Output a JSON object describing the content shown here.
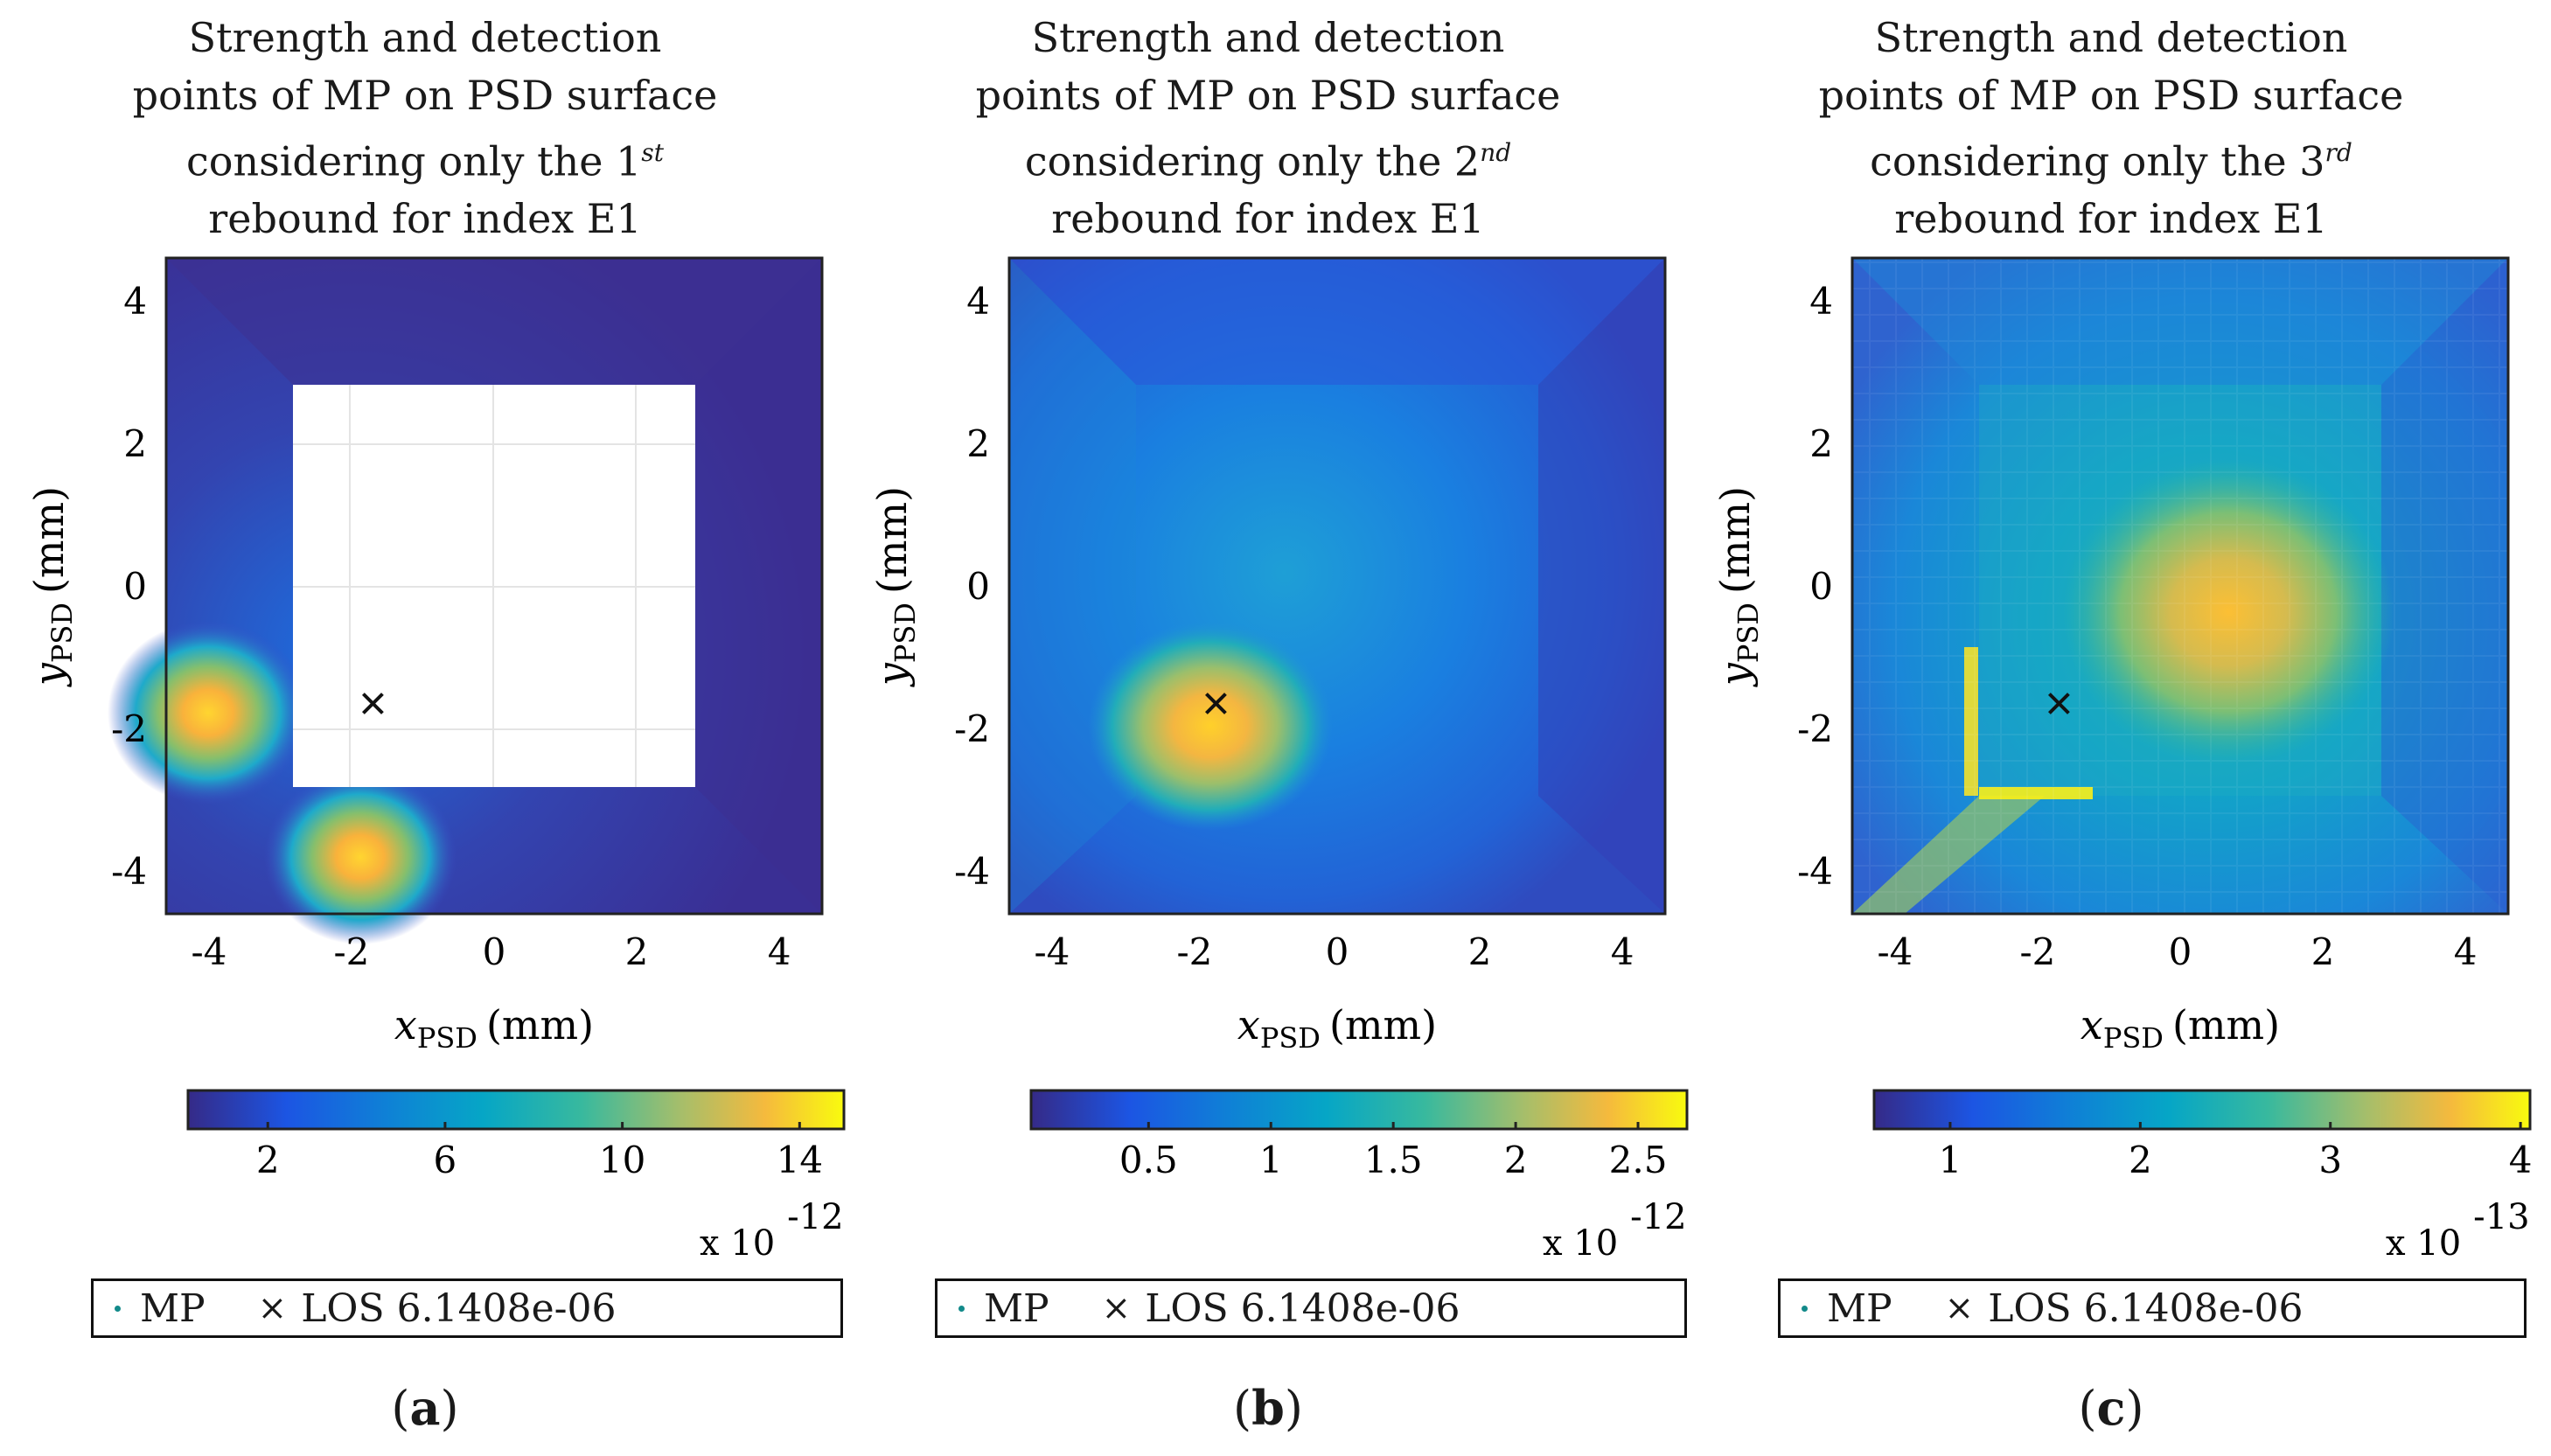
{
  "chart_data": [
    {
      "type": "heatmap",
      "panel_label": "a",
      "title_line1": "Strength and detection",
      "title_line2": "points of MP on PSD surface",
      "title_line3_prefix": "considering only the 1",
      "title_line3_sup": "st",
      "title_line4": "rebound for index E1",
      "xlabel_var": "x",
      "xlabel_sub": "PSD",
      "xlabel_unit": "(mm)",
      "ylabel_var": "y",
      "ylabel_sub": "PSD",
      "ylabel_unit": "(mm)",
      "xlim": [
        -4.6,
        4.6
      ],
      "ylim": [
        -4.6,
        4.6
      ],
      "xticks": [
        "-4",
        "-2",
        "0",
        "2",
        "4"
      ],
      "yticks": [
        "4",
        "2",
        "0",
        "-2",
        "-4"
      ],
      "central_blank": [
        -2.85,
        2.85,
        -2.8,
        2.8
      ],
      "hotspots": [
        {
          "x": -3.8,
          "y": -1.8,
          "value": 14.5
        },
        {
          "x": -1.8,
          "y": -3.7,
          "value": 14.0
        }
      ],
      "los_marker": {
        "x": -1.7,
        "y": -1.65
      },
      "colorbar": {
        "range": [
          0.2,
          15
        ],
        "ticks": [
          "2",
          "6",
          "10",
          "14"
        ],
        "tick_values": [
          2,
          6,
          10,
          14
        ],
        "exponent_label": "x 10",
        "exponent": "-12"
      },
      "legend": {
        "mp_label": "MP",
        "los_label": "LOS 6.1408e-06"
      }
    },
    {
      "type": "heatmap",
      "panel_label": "b",
      "title_line1": "Strength and detection",
      "title_line2": "points of MP on PSD surface",
      "title_line3_prefix": "considering only the 2",
      "title_line3_sup": "nd",
      "title_line4": "rebound for index E1",
      "xlabel_var": "x",
      "xlabel_sub": "PSD",
      "xlabel_unit": "(mm)",
      "ylabel_var": "y",
      "ylabel_sub": "PSD",
      "ylabel_unit": "(mm)",
      "xlim": [
        -4.6,
        4.6
      ],
      "ylim": [
        -4.6,
        4.6
      ],
      "xticks": [
        "-4",
        "-2",
        "0",
        "2",
        "4"
      ],
      "yticks": [
        "4",
        "2",
        "0",
        "-2",
        "-4"
      ],
      "hotspots": [
        {
          "x": -2.3,
          "y": -1.9,
          "value": 2.6
        }
      ],
      "los_marker": {
        "x": -1.7,
        "y": -1.65
      },
      "colorbar": {
        "range": [
          0.02,
          2.7
        ],
        "ticks": [
          "0.5",
          "1",
          "1.5",
          "2",
          "2.5"
        ],
        "tick_values": [
          0.5,
          1,
          1.5,
          2,
          2.5
        ],
        "exponent_label": "x 10",
        "exponent": "-12"
      },
      "legend": {
        "mp_label": "MP",
        "los_label": "LOS 6.1408e-06"
      }
    },
    {
      "type": "heatmap",
      "panel_label": "c",
      "title_line1": "Strength and detection",
      "title_line2": "points of MP on PSD surface",
      "title_line3_prefix": "considering only the 3",
      "title_line3_sup": "rd",
      "title_line4": "rebound for index E1",
      "xlabel_var": "x",
      "xlabel_sub": "PSD",
      "xlabel_unit": "(mm)",
      "ylabel_var": "y",
      "ylabel_sub": "PSD",
      "ylabel_unit": "(mm)",
      "xlim": [
        -4.6,
        4.6
      ],
      "ylim": [
        -4.6,
        4.6
      ],
      "xticks": [
        "-4",
        "-2",
        "0",
        "2",
        "4"
      ],
      "yticks": [
        "4",
        "2",
        "0",
        "-2",
        "-4"
      ],
      "hotspots": [
        {
          "x": -0.5,
          "y": -0.4,
          "value": 3.4
        },
        {
          "x": -1.6,
          "y": -2.9,
          "value": 4.0
        }
      ],
      "los_marker": {
        "x": -1.7,
        "y": -1.65
      },
      "colorbar": {
        "range": [
          0.6,
          4.05
        ],
        "ticks": [
          "1",
          "2",
          "3",
          "4"
        ],
        "tick_values": [
          1,
          2,
          3,
          4
        ],
        "exponent_label": "x 10",
        "exponent": "-13"
      },
      "legend": {
        "mp_label": "MP",
        "los_label": "LOS 6.1408e-06"
      }
    }
  ]
}
